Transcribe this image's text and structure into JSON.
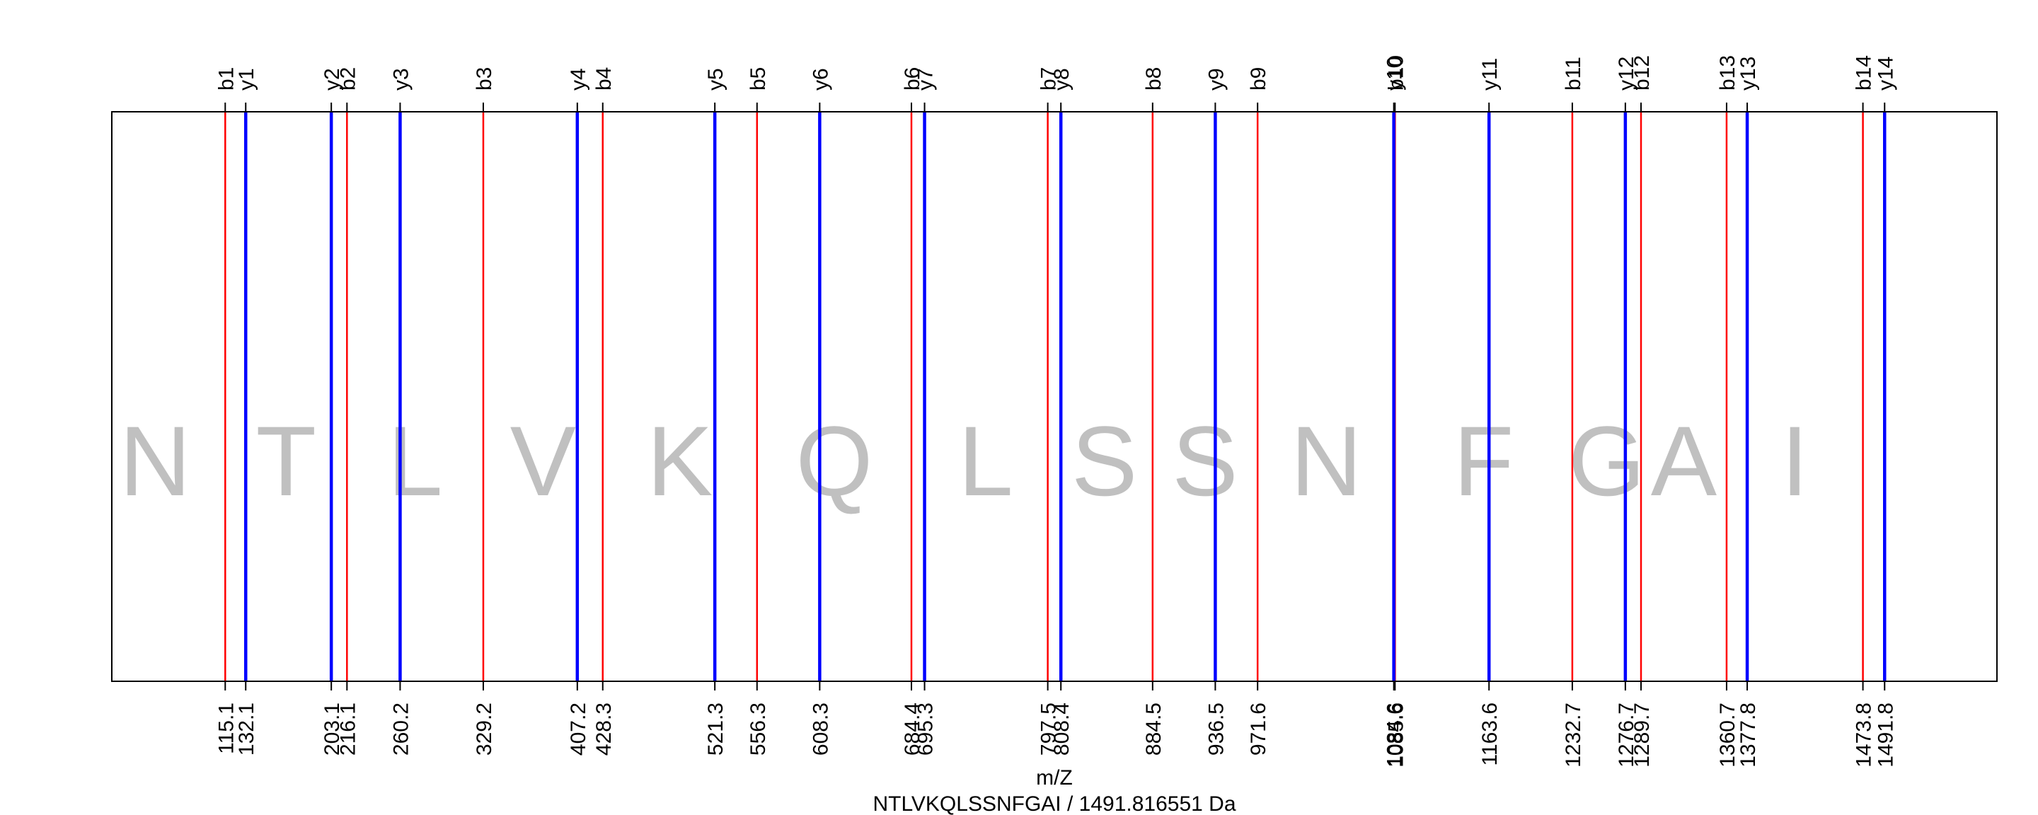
{
  "chart_data": {
    "type": "fragment-ion-map",
    "xlabel": "m/Z",
    "title": "NTLVKQLSSNFGAI / 1491.816551 Da",
    "xlim": [
      21,
      1585
    ],
    "colors": {
      "b": "#ff0000",
      "y": "#0000ff",
      "residue": "#c0c0c0",
      "frame": "#000000"
    },
    "residues": [
      {
        "letter": "N",
        "x": 57
      },
      {
        "letter": "T",
        "x": 165.6
      },
      {
        "letter": "L",
        "x": 272.7
      },
      {
        "letter": "V",
        "x": 378.75
      },
      {
        "letter": "K",
        "x": 492.3
      },
      {
        "letter": "Q",
        "x": 620.4
      },
      {
        "letter": "L",
        "x": 746
      },
      {
        "letter": "S",
        "x": 844.5
      },
      {
        "letter": "S",
        "x": 928
      },
      {
        "letter": "N",
        "x": 1028.6
      },
      {
        "letter": "F",
        "x": 1159.15
      },
      {
        "letter": "G",
        "x": 1261.2
      },
      {
        "letter": "A",
        "x": 1325.2
      },
      {
        "letter": "I",
        "x": 1417.25
      }
    ],
    "b_ions": [
      {
        "label": "b1",
        "value": "115.1",
        "x": 115.1
      },
      {
        "label": "b2",
        "value": "216.1",
        "x": 216.1
      },
      {
        "label": "b3",
        "value": "329.2",
        "x": 329.2
      },
      {
        "label": "b4",
        "value": "428.3",
        "x": 428.3
      },
      {
        "label": "b5",
        "value": "556.3",
        "x": 556.3
      },
      {
        "label": "b6",
        "value": "684.4",
        "x": 684.4
      },
      {
        "label": "b7",
        "value": "797.5",
        "x": 797.5
      },
      {
        "label": "b8",
        "value": "884.5",
        "x": 884.5
      },
      {
        "label": "b9",
        "value": "971.6",
        "x": 971.6
      },
      {
        "label": "b10",
        "value": "1085.6",
        "x": 1085.6
      },
      {
        "label": "b11",
        "value": "1232.7",
        "x": 1232.7
      },
      {
        "label": "b12",
        "value": "1289.7",
        "x": 1289.7
      },
      {
        "label": "b13",
        "value": "1360.7",
        "x": 1360.7
      },
      {
        "label": "b14",
        "value": "1473.8",
        "x": 1473.8
      }
    ],
    "y_ions": [
      {
        "label": "y1",
        "value": "132.1",
        "x": 132.1
      },
      {
        "label": "y2",
        "value": "203.1",
        "x": 203.1
      },
      {
        "label": "y3",
        "value": "260.2",
        "x": 260.2
      },
      {
        "label": "y4",
        "value": "407.2",
        "x": 407.2
      },
      {
        "label": "y5",
        "value": "521.3",
        "x": 521.3
      },
      {
        "label": "y6",
        "value": "608.3",
        "x": 608.3
      },
      {
        "label": "y7",
        "value": "695.3",
        "x": 695.3
      },
      {
        "label": "y8",
        "value": "808.4",
        "x": 808.4
      },
      {
        "label": "y9",
        "value": "936.5",
        "x": 936.5
      },
      {
        "label": "y10",
        "value": "1084.6",
        "x": 1084.6
      },
      {
        "label": "y11",
        "value": "1163.6",
        "x": 1163.6
      },
      {
        "label": "y12",
        "value": "1276.7",
        "x": 1276.7
      },
      {
        "label": "y13",
        "value": "1377.8",
        "x": 1377.8
      },
      {
        "label": "y14",
        "value": "1491.8",
        "x": 1491.8
      }
    ]
  }
}
